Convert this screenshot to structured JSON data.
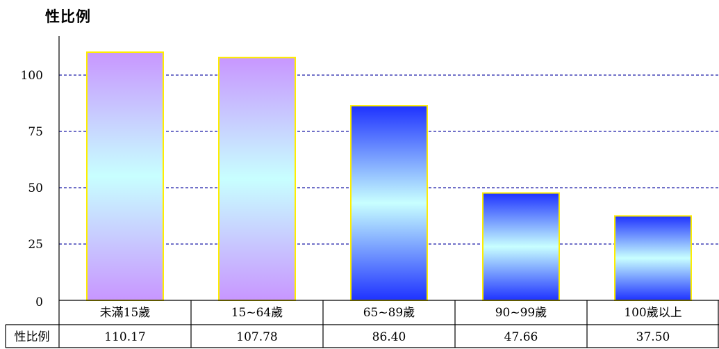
{
  "chart_data": {
    "type": "bar",
    "title": "性比例",
    "categories": [
      "未滿15歲",
      "15~64歲",
      "65~89歲",
      "90~99歲",
      "100歲以上"
    ],
    "values": [
      110.17,
      107.78,
      86.4,
      47.66,
      37.5
    ],
    "value_labels": [
      "110.17",
      "107.78",
      "86.40",
      "47.66",
      "37.50"
    ],
    "yticks": [
      0,
      25,
      50,
      75,
      100
    ],
    "ylim": [
      0,
      125
    ],
    "grid": true,
    "table_row_header": "性比例",
    "colors": {
      "bar_purple_edge": "#c896ff",
      "bar_blue_edge": "#1e32ff",
      "bar_mid": "#c8ffff",
      "bar_outline": "#ffee00",
      "gridline": "#1a1aa8"
    }
  }
}
